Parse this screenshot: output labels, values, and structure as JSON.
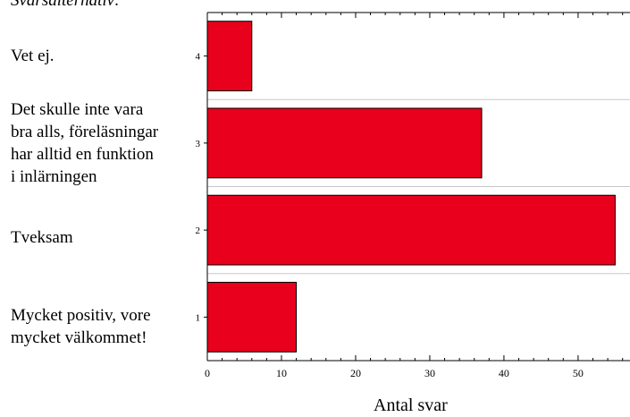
{
  "chart_data": {
    "type": "bar",
    "orientation": "horizontal",
    "title": "Svarsalternativ:",
    "xlabel": "Antal svar",
    "ylabel": "",
    "xlim": [
      0,
      57
    ],
    "x_ticks": [
      0,
      10,
      20,
      30,
      40,
      50
    ],
    "categories": [
      "1",
      "2",
      "3",
      "4"
    ],
    "category_labels": [
      "Mycket positiv, vore\nmycket välkommet!",
      "Tveksam",
      "Det skulle inte vara\nbra alls, föreläsningar\nhar alltid en funktion\ni inlärningen",
      "Vet ej."
    ],
    "values": [
      12,
      55,
      37,
      6
    ],
    "bar_color": "#e8001c",
    "grid": "horizontal separators between categories"
  }
}
